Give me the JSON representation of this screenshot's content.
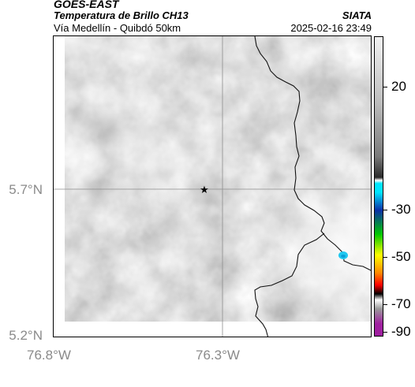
{
  "header": {
    "title": "GOES-EAST",
    "subtitle": "Temperatura de Brillo CH13",
    "location": "Vía Medellín - Quibdó 50km",
    "org": "SIATA",
    "timestamp": "2025-02-16 23:49"
  },
  "map": {
    "lat_labels": [
      "5.7°N",
      "5.2°N"
    ],
    "lon_labels": [
      "76.8°W",
      "76.3°W"
    ],
    "marker": "star-marker"
  },
  "colorbar": {
    "labels": [
      "20",
      "-30",
      "-50",
      "-70",
      "-90"
    ],
    "stops": [
      "#f2f2f2",
      "#bdbdbd",
      "#7a7a7a",
      "#2a2a2a",
      "#0000",
      "#00e5ff",
      "#0b2fa8",
      "#00c800",
      "#ffff00",
      "#ff8800",
      "#ff0000",
      "#000000",
      "#ffffff",
      "#9a9a9a",
      "#a020a0"
    ]
  }
}
